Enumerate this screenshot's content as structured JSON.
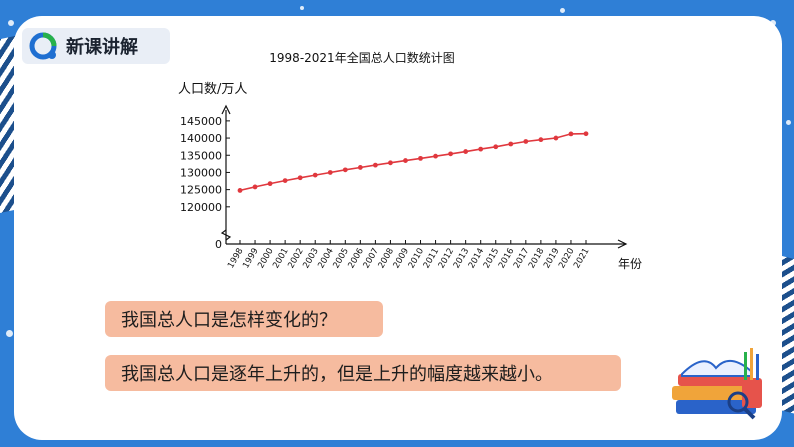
{
  "header": {
    "title": "新课讲解"
  },
  "chart_data": {
    "type": "line",
    "title": "1998-2021年全国总人口数统计图",
    "ylabel": "人口数/万人",
    "xlabel": "年份",
    "y_ticks": [
      "145000",
      "140000",
      "135000",
      "130000",
      "125000",
      "120000",
      "0"
    ],
    "ylim": [
      115000,
      147000
    ],
    "y_break": true,
    "grid": false,
    "line_color": "#e0383e",
    "x": [
      "1998",
      "1999",
      "2000",
      "2001",
      "2002",
      "2003",
      "2004",
      "2005",
      "2006",
      "2007",
      "2008",
      "2009",
      "2010",
      "2011",
      "2012",
      "2013",
      "2014",
      "2015",
      "2016",
      "2017",
      "2018",
      "2019",
      "2020",
      "2021"
    ],
    "values": [
      124761,
      125786,
      126743,
      127627,
      128453,
      129227,
      129988,
      130756,
      131448,
      132129,
      132802,
      133450,
      134091,
      134735,
      135404,
      136072,
      136782,
      137462,
      138271,
      139008,
      139538,
      140005,
      141212,
      141260
    ]
  },
  "question": "我国总人口是怎样变化的？",
  "answer": "我国总人口是逐年上升的，但是上升的幅度越来越小。"
}
